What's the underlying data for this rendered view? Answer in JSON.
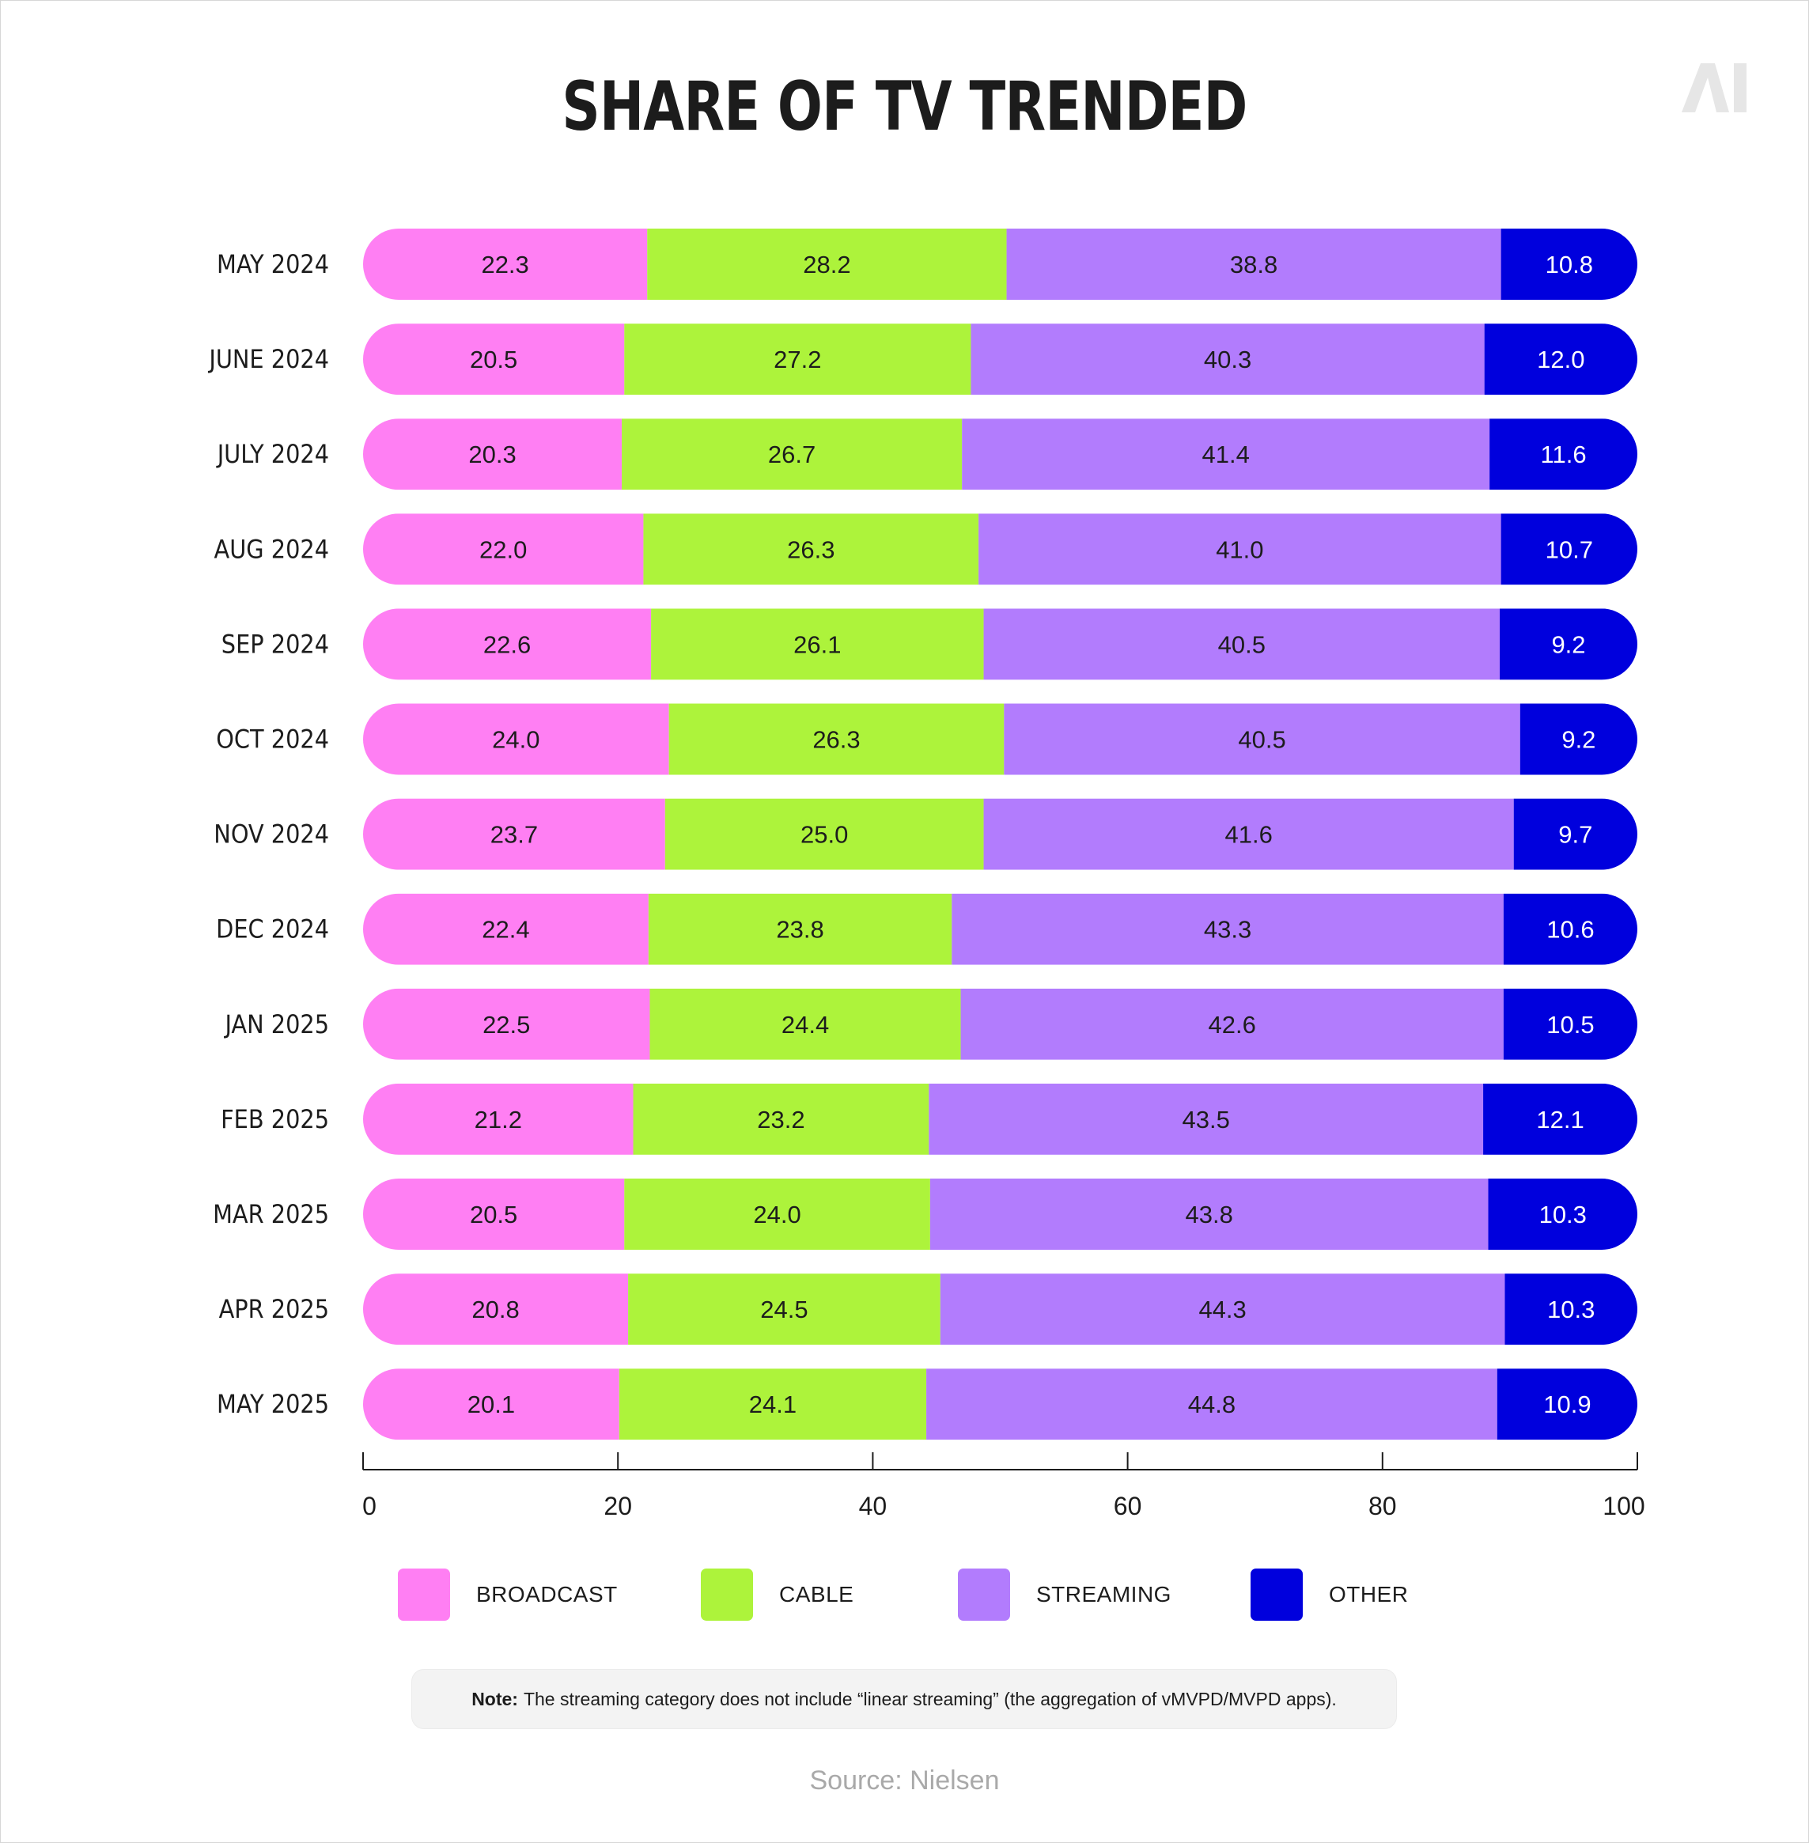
{
  "title": "SHARE OF TV TRENDED",
  "logo_text": "AI",
  "colors": {
    "broadcast": "#ff7ff3",
    "cable": "#adf33b",
    "streaming": "#b27cfd",
    "other": "#0000dd",
    "text_dark": "#1c1c1c",
    "text_light": "#ffffff",
    "source": "#a9a9a9"
  },
  "chart_data": {
    "type": "bar",
    "orientation": "horizontal",
    "stacked": true,
    "title": "SHARE OF TV TRENDED",
    "categories": [
      "MAY 2024",
      "JUNE 2024",
      "JULY 2024",
      "AUG 2024",
      "SEP 2024",
      "OCT  2024",
      "NOV  2024",
      "DEC  2024",
      "JAN  2025",
      "FEB 2025",
      "MAR 2025",
      "APR 2025",
      "MAY 2025"
    ],
    "series": [
      {
        "name": "BROADCAST",
        "key": "broadcast",
        "values": [
          22.3,
          20.5,
          20.3,
          22.0,
          22.6,
          24.0,
          23.7,
          22.4,
          22.5,
          21.2,
          20.5,
          20.8,
          20.1
        ]
      },
      {
        "name": "CABLE",
        "key": "cable",
        "values": [
          28.2,
          27.2,
          26.7,
          26.3,
          26.1,
          26.3,
          25.0,
          23.8,
          24.4,
          23.2,
          24.0,
          24.5,
          24.1
        ]
      },
      {
        "name": "STREAMING",
        "key": "streaming",
        "values": [
          38.8,
          40.3,
          41.4,
          41.0,
          40.5,
          40.5,
          41.6,
          43.3,
          42.6,
          43.5,
          43.8,
          44.3,
          44.8
        ]
      },
      {
        "name": "OTHER",
        "key": "other",
        "values": [
          10.8,
          12.0,
          11.6,
          10.7,
          9.2,
          9.2,
          9.7,
          10.6,
          10.5,
          12.1,
          10.3,
          10.3,
          10.9
        ]
      }
    ],
    "xlim": [
      0,
      100
    ],
    "xticks": [
      "0",
      "20",
      "40",
      "60",
      "80",
      "100"
    ],
    "xlabel": "",
    "ylabel": "",
    "legend_position": "bottom"
  },
  "legend": [
    {
      "label": "BROADCAST",
      "key": "broadcast"
    },
    {
      "label": "CABLE",
      "key": "cable"
    },
    {
      "label": "STREAMING",
      "key": "streaming"
    },
    {
      "label": "OTHER",
      "key": "other"
    }
  ],
  "note": {
    "label": "Note:",
    "text": "The streaming category does not include “linear streaming” (the aggregation of vMVPD/MVPD apps)."
  },
  "source": "Source: Nielsen"
}
